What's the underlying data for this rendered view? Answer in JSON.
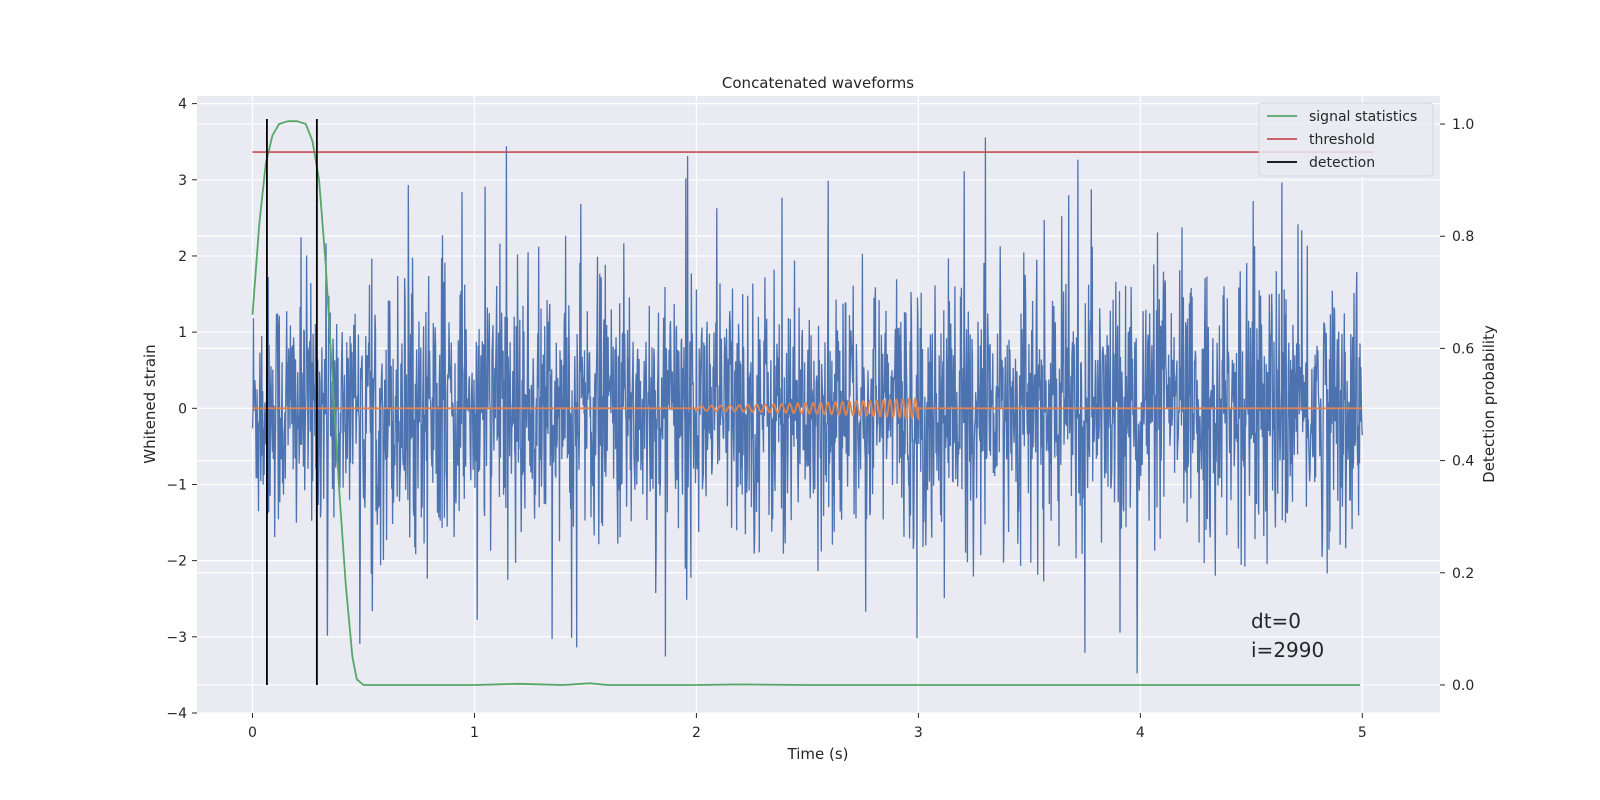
{
  "chart_data": {
    "type": "line",
    "title": "Concatenated waveforms",
    "xlabel": "Time (s)",
    "ylabel": "Whitened strain",
    "y2label": "Detection probability",
    "xlim": [
      -0.25,
      5.35
    ],
    "ylim": [
      -4.0,
      4.1
    ],
    "y2lim": [
      -0.05,
      1.05
    ],
    "xticks": [
      0,
      1,
      2,
      3,
      4,
      5
    ],
    "yticks": [
      -4,
      -3,
      -2,
      -1,
      0,
      1,
      2,
      3,
      4
    ],
    "y2ticks": [
      0.0,
      0.2,
      0.4,
      0.6,
      0.8,
      1.0
    ],
    "xtick_labels": [
      "0",
      "1",
      "2",
      "3",
      "4",
      "5"
    ],
    "ytick_labels": [
      "−4",
      "−3",
      "−2",
      "−1",
      "0",
      "1",
      "2",
      "3",
      "4"
    ],
    "y2tick_labels": [
      "0.0",
      "0.2",
      "0.4",
      "0.6",
      "0.8",
      "1.0"
    ],
    "grid": true,
    "legend_position": "top-right",
    "colors": {
      "noise": "#4c72b0",
      "waveform": "#dd8452",
      "signal": "#55a868",
      "threshold": "#c44e52",
      "detection": "#000000",
      "background": "#eaeaf2",
      "grid": "#ffffff"
    },
    "series": [
      {
        "name": "signal statistics",
        "axis": "right",
        "x": [
          0.0,
          0.03,
          0.06,
          0.09,
          0.12,
          0.16,
          0.2,
          0.24,
          0.27,
          0.3,
          0.33,
          0.36,
          0.39,
          0.42,
          0.45,
          0.47,
          0.5,
          0.55,
          0.8,
          1.0,
          1.2,
          1.4,
          1.52,
          1.6,
          2.0,
          2.2,
          2.5,
          3.0,
          4.0,
          4.99
        ],
        "y": [
          0.66,
          0.82,
          0.93,
          0.98,
          1.0,
          1.005,
          1.005,
          1.0,
          0.97,
          0.9,
          0.75,
          0.55,
          0.35,
          0.18,
          0.05,
          0.01,
          0.0,
          0.0,
          0.0,
          0.0,
          0.002,
          0.0,
          0.003,
          0.0,
          0.0,
          0.001,
          0.0,
          0.0,
          0.0,
          0.0
        ]
      },
      {
        "name": "threshold",
        "axis": "right",
        "x": [
          0.0,
          5.05
        ],
        "y": [
          0.95,
          0.95
        ]
      },
      {
        "name": "detection",
        "axis": "right",
        "x": [
          0.065,
          0.29
        ],
        "y": [
          0.0,
          1.0
        ]
      },
      {
        "axis": "left",
        "x": [
          0.0,
          2.0,
          2.2,
          2.4,
          2.6,
          2.8,
          3.0,
          3.01,
          5.0
        ],
        "y": [
          0.0,
          0.05,
          0.07,
          0.1,
          0.13,
          0.17,
          0.22,
          0.0,
          0.0
        ]
      },
      {
        "axis": "left",
        "x": [
          0.0,
          5.0
        ],
        "y_range": [
          -3.6,
          3.6
        ]
      }
    ],
    "annotations": [
      "dt=0",
      "i=2990"
    ]
  }
}
